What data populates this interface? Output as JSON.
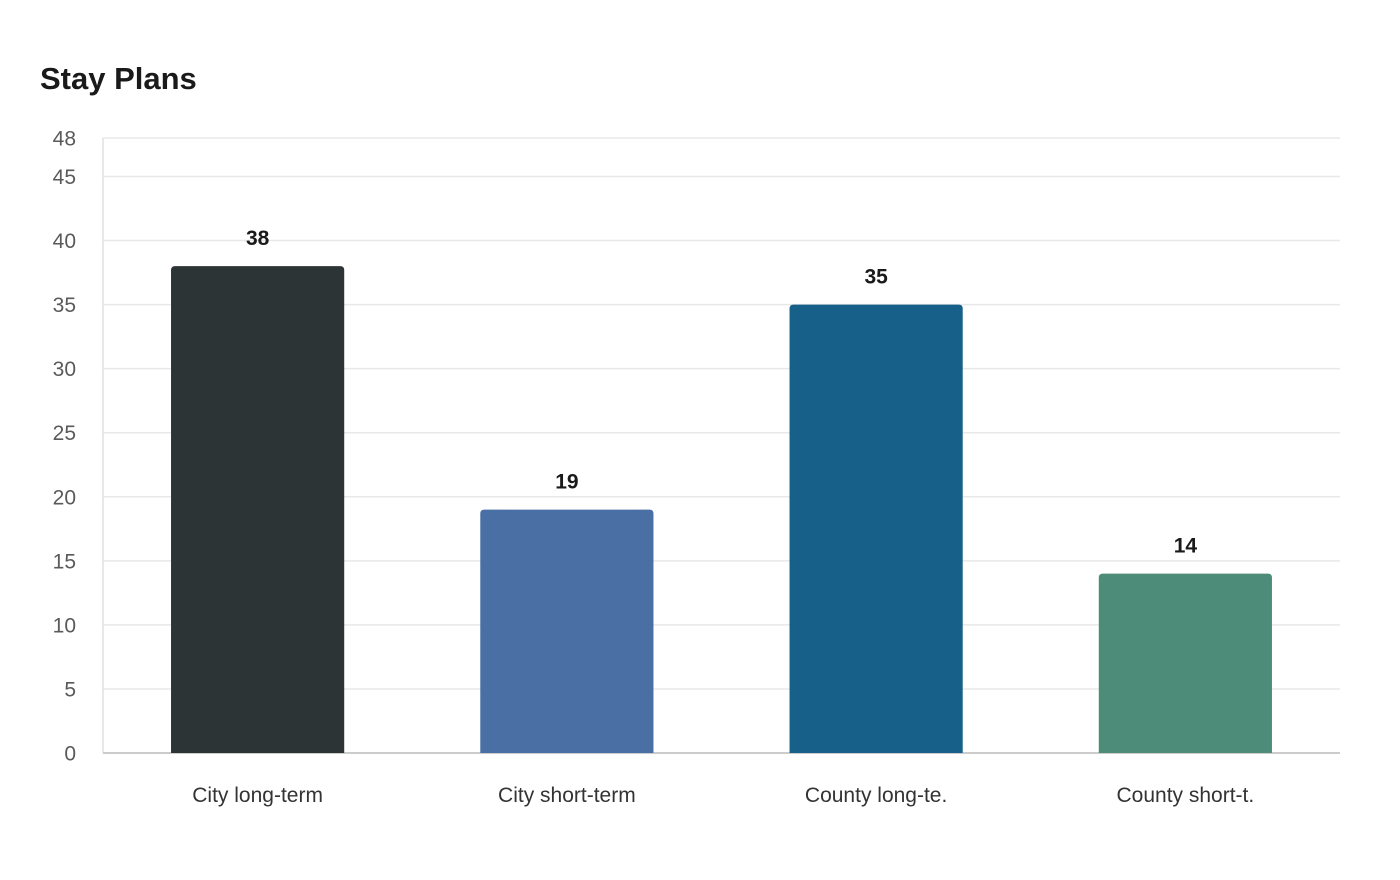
{
  "chart_data": {
    "type": "bar",
    "title": "Stay Plans",
    "xlabel": "",
    "ylabel": "",
    "categories": [
      "City long-term",
      "City short-term",
      "County long-te.",
      "County short-t."
    ],
    "values": [
      38,
      19,
      35,
      14
    ],
    "colors": [
      "#2d3436",
      "#4a6fa5",
      "#17608a",
      "#4e8c7a"
    ],
    "ylim": [
      0,
      48
    ],
    "yticks": [
      0,
      5,
      10,
      15,
      20,
      25,
      30,
      35,
      40,
      45,
      48
    ],
    "grid": true,
    "legend": "none",
    "data_labels": true
  }
}
